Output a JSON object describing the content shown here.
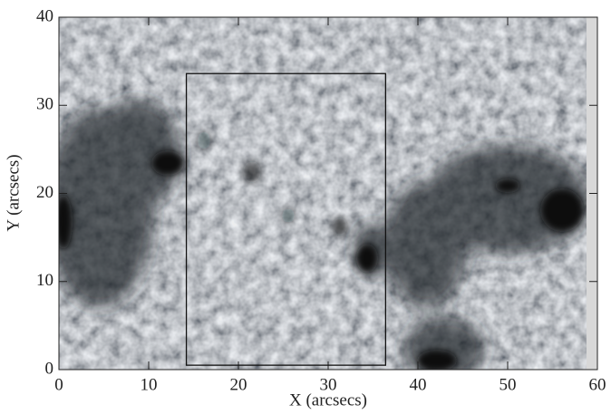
{
  "chart_data": {
    "type": "image",
    "xlabel": "X (arcsecs)",
    "ylabel": "Y (arcsecs)",
    "xlim": [
      0,
      60
    ],
    "ylim": [
      0,
      40
    ],
    "xticks": [
      0,
      10,
      20,
      30,
      40,
      50,
      60
    ],
    "yticks": [
      0,
      10,
      20,
      30,
      40
    ],
    "box": {
      "x": [
        14.2,
        36.4
      ],
      "y": [
        0.5,
        33.6
      ],
      "color": "#111111"
    }
  }
}
